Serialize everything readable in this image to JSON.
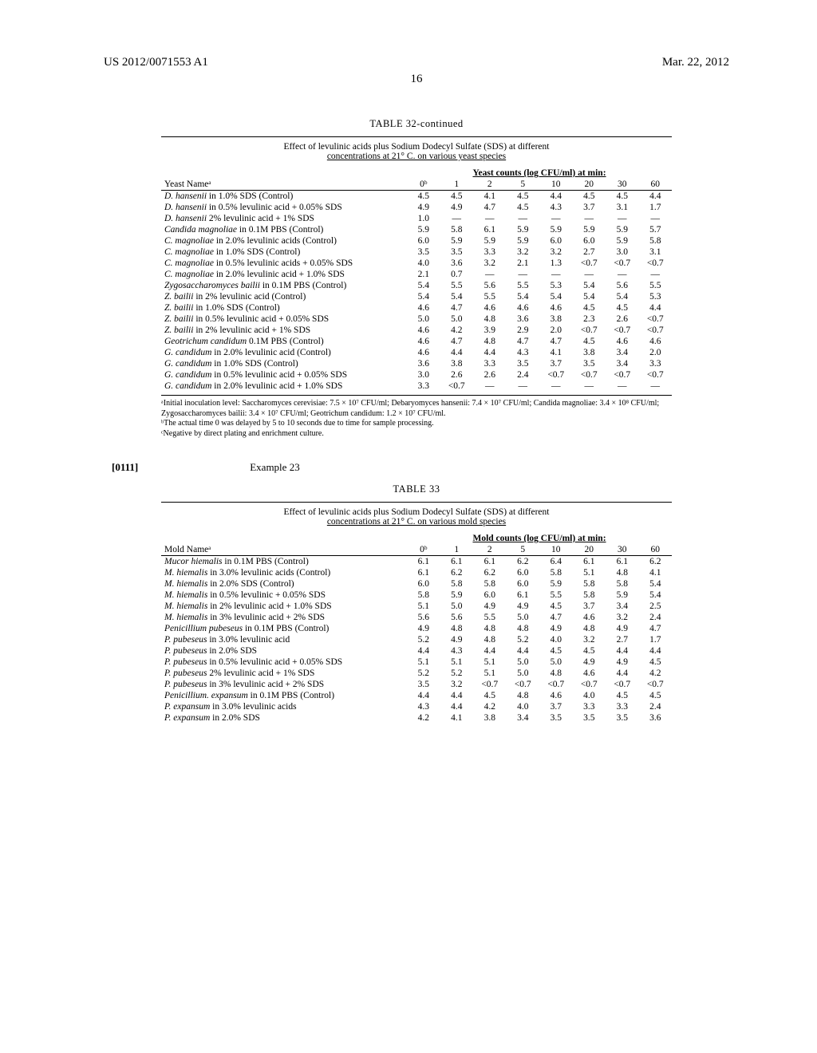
{
  "header": {
    "left": "US 2012/0071553 A1",
    "right": "Mar. 22, 2012",
    "page_number": "16"
  },
  "table32": {
    "title": "TABLE 32-continued",
    "caption_line1": "Effect of levulinic acids plus Sodium Dodecyl Sulfate (SDS) at different",
    "caption_line2": "concentrations at 21° C. on various yeast species",
    "col_group_label": "Yeast counts (log CFU/ml) at min:",
    "row_label": "Yeast Nameᵃ",
    "time_cols": [
      "0ᵇ",
      "1",
      "2",
      "5",
      "10",
      "20",
      "30",
      "60"
    ],
    "rows": [
      {
        "name": "D. hansenii in 1.0% SDS (Control)",
        "italic": "D. hansenii",
        "v": [
          "4.5",
          "4.5",
          "4.1",
          "4.5",
          "4.4",
          "4.5",
          "4.5",
          "4.4"
        ]
      },
      {
        "name": "D. hansenii in 0.5% levulinic acid + 0.05% SDS",
        "italic": "D. hansenii",
        "v": [
          "4.9",
          "4.9",
          "4.7",
          "4.5",
          "4.3",
          "3.7",
          "3.1",
          "1.7"
        ]
      },
      {
        "name": "D. hansenii 2% levulinic acid + 1% SDS",
        "italic": "D. hansenii",
        "v": [
          "1.0",
          "—",
          "—",
          "—",
          "—",
          "—",
          "—",
          "—"
        ]
      },
      {
        "name": "Candida magnoliae in 0.1M PBS (Control)",
        "italic": "Candida magnoliae",
        "v": [
          "5.9",
          "5.8",
          "6.1",
          "5.9",
          "5.9",
          "5.9",
          "5.9",
          "5.7"
        ]
      },
      {
        "name": "C. magnoliae in 2.0% levulinic acids (Control)",
        "italic": "C. magnoliae",
        "v": [
          "6.0",
          "5.9",
          "5.9",
          "5.9",
          "6.0",
          "6.0",
          "5.9",
          "5.8"
        ]
      },
      {
        "name": "C. magnoliae in 1.0% SDS (Control)",
        "italic": "C. magnoliae",
        "v": [
          "3.5",
          "3.5",
          "3.3",
          "3.2",
          "3.2",
          "2.7",
          "3.0",
          "3.1"
        ]
      },
      {
        "name": "C. magnoliae in 0.5% levulinic acids + 0.05% SDS",
        "italic": "C. magnoliae",
        "v": [
          "4.0",
          "3.6",
          "3.2",
          "2.1",
          "1.3",
          "<0.7",
          "<0.7",
          "<0.7"
        ]
      },
      {
        "name": "C. magnoliae in 2.0% levulinic acid + 1.0% SDS",
        "italic": "C. magnoliae",
        "v": [
          "2.1",
          "0.7",
          "—",
          "—",
          "—",
          "—",
          "—",
          "—"
        ]
      },
      {
        "name": "Zygosaccharomyces bailii in 0.1M PBS (Control)",
        "italic": "Zygosaccharomyces bailii",
        "v": [
          "5.4",
          "5.5",
          "5.6",
          "5.5",
          "5.3",
          "5.4",
          "5.6",
          "5.5"
        ]
      },
      {
        "name": "Z. bailii in 2% levulinic acid (Control)",
        "italic": "Z. bailii",
        "v": [
          "5.4",
          "5.4",
          "5.5",
          "5.4",
          "5.4",
          "5.4",
          "5.4",
          "5.3"
        ]
      },
      {
        "name": "Z. bailii in 1.0% SDS (Control)",
        "italic": "Z. bailii",
        "v": [
          "4.6",
          "4.7",
          "4.6",
          "4.6",
          "4.6",
          "4.5",
          "4.5",
          "4.4"
        ]
      },
      {
        "name": "Z. bailii in 0.5% levulinic acid + 0.05% SDS",
        "italic": "Z. bailii",
        "v": [
          "5.0",
          "5.0",
          "4.8",
          "3.6",
          "3.8",
          "2.3",
          "2.6",
          "<0.7"
        ]
      },
      {
        "name": "Z. bailii in 2% levulinic acid + 1% SDS",
        "italic": "Z. bailii",
        "v": [
          "4.6",
          "4.2",
          "3.9",
          "2.9",
          "2.0",
          "<0.7",
          "<0.7",
          "<0.7"
        ]
      },
      {
        "name": "Geotrichum candidum 0.1M PBS (Control)",
        "italic": "Geotrichum candidum",
        "v": [
          "4.6",
          "4.7",
          "4.8",
          "4.7",
          "4.7",
          "4.5",
          "4.6",
          "4.6"
        ]
      },
      {
        "name": "G. candidum in 2.0% levulinic acid (Control)",
        "italic": "G. candidum",
        "v": [
          "4.6",
          "4.4",
          "4.4",
          "4.3",
          "4.1",
          "3.8",
          "3.4",
          "2.0"
        ]
      },
      {
        "name": "G. candidum in 1.0% SDS (Control)",
        "italic": "G. candidum",
        "v": [
          "3.6",
          "3.8",
          "3.3",
          "3.5",
          "3.7",
          "3.5",
          "3.4",
          "3.3"
        ]
      },
      {
        "name": "G. candidum in 0.5% levulinic acid + 0.05% SDS",
        "italic": "G. candidum",
        "v": [
          "3.0",
          "2.6",
          "2.6",
          "2.4",
          "<0.7",
          "<0.7",
          "<0.7",
          "<0.7"
        ]
      },
      {
        "name": "G. candidum in 2.0% levulinic acid + 1.0% SDS",
        "italic": "G. candidum",
        "v": [
          "3.3",
          "<0.7",
          "—",
          "—",
          "—",
          "—",
          "—",
          "—"
        ]
      }
    ],
    "footnotes": [
      "ᵃInitial inoculation level: Saccharomyces cerevisiae: 7.5 × 10⁷ CFU/ml; Debaryomyces hansenii: 7.4 × 10⁷ CFU/ml; Candida magnoliae: 3.4 × 10⁸ CFU/ml; Zygosaccharomyces bailii: 3.4 × 10⁷ CFU/ml; Geotrichum candidum: 1.2 × 10⁷ CFU/ml.",
      "ᵇThe actual time 0 was delayed by 5 to 10 seconds due to time for sample processing.",
      "ᶜNegative by direct plating and enrichment culture."
    ]
  },
  "example": {
    "para_num": "[0111]",
    "heading": "Example 23"
  },
  "table33": {
    "title": "TABLE 33",
    "caption_line1": "Effect of levulinic acids plus Sodium Dodecyl Sulfate (SDS) at different",
    "caption_line2": "concentrations at 21° C. on various mold species",
    "col_group_label": "Mold counts (log CFU/ml) at min:",
    "row_label": "Mold Nameᵃ",
    "time_cols": [
      "0ᵇ",
      "1",
      "2",
      "5",
      "10",
      "20",
      "30",
      "60"
    ],
    "rows": [
      {
        "name": "Mucor hiemalis in 0.1M PBS (Control)",
        "italic": "Mucor hiemalis",
        "v": [
          "6.1",
          "6.1",
          "6.1",
          "6.2",
          "6.4",
          "6.1",
          "6.1",
          "6.2"
        ]
      },
      {
        "name": "M. hiemalis in 3.0% levulinic acids (Control)",
        "italic": "M. hiemalis",
        "v": [
          "6.1",
          "6.2",
          "6.2",
          "6.0",
          "5.8",
          "5.1",
          "4.8",
          "4.1"
        ]
      },
      {
        "name": "M. hiemalis in 2.0% SDS (Control)",
        "italic": "M. hiemalis",
        "v": [
          "6.0",
          "5.8",
          "5.8",
          "6.0",
          "5.9",
          "5.8",
          "5.8",
          "5.4"
        ]
      },
      {
        "name": "M. hiemalis in 0.5% levulinic + 0.05% SDS",
        "italic": "M. hiemalis",
        "v": [
          "5.8",
          "5.9",
          "6.0",
          "6.1",
          "5.5",
          "5.8",
          "5.9",
          "5.4"
        ]
      },
      {
        "name": "M. hiemalis in 2% levulinic acid + 1.0% SDS",
        "italic": "M. hiemalis",
        "v": [
          "5.1",
          "5.0",
          "4.9",
          "4.9",
          "4.5",
          "3.7",
          "3.4",
          "2.5"
        ]
      },
      {
        "name": "M. hiemalis in 3% levulinic acid + 2% SDS",
        "italic": "M. hiemalis",
        "v": [
          "5.6",
          "5.6",
          "5.5",
          "5.0",
          "4.7",
          "4.6",
          "3.2",
          "2.4"
        ]
      },
      {
        "name": "Penicillium pubeseus in 0.1M PBS (Control)",
        "italic": "Penicillium pubeseus",
        "v": [
          "4.9",
          "4.8",
          "4.8",
          "4.8",
          "4.9",
          "4.8",
          "4.9",
          "4.7"
        ]
      },
      {
        "name": "P. pubeseus in 3.0% levulinic acid",
        "italic": "P. pubeseus",
        "v": [
          "5.2",
          "4.9",
          "4.8",
          "5.2",
          "4.0",
          "3.2",
          "2.7",
          "1.7"
        ]
      },
      {
        "name": "P. pubeseus in 2.0% SDS",
        "italic": "P. pubeseus",
        "v": [
          "4.4",
          "4.3",
          "4.4",
          "4.4",
          "4.5",
          "4.5",
          "4.4",
          "4.4"
        ]
      },
      {
        "name": "P. pubeseus in 0.5% levulinic acid + 0.05% SDS",
        "italic": "P. pubeseus",
        "v": [
          "5.1",
          "5.1",
          "5.1",
          "5.0",
          "5.0",
          "4.9",
          "4.9",
          "4.5"
        ]
      },
      {
        "name": "P. pubeseus 2% levulinic acid + 1% SDS",
        "italic": "P. pubeseus",
        "v": [
          "5.2",
          "5.2",
          "5.1",
          "5.0",
          "4.8",
          "4.6",
          "4.4",
          "4.2"
        ]
      },
      {
        "name": "P. pubeseus in 3% levulinic acid + 2% SDS",
        "italic": "P. pubeseus",
        "v": [
          "3.5",
          "3.2",
          "<0.7",
          "<0.7",
          "<0.7",
          "<0.7",
          "<0.7",
          "<0.7"
        ]
      },
      {
        "name": "Penicillium. expansum in 0.1M PBS (Control)",
        "italic": "Penicillium. expansum",
        "v": [
          "4.4",
          "4.4",
          "4.5",
          "4.8",
          "4.6",
          "4.0",
          "4.5",
          "4.5"
        ]
      },
      {
        "name": "P. expansum in 3.0% levulinic acids",
        "italic": "P. expansum",
        "v": [
          "4.3",
          "4.4",
          "4.2",
          "4.0",
          "3.7",
          "3.3",
          "3.3",
          "2.4"
        ]
      },
      {
        "name": "P. expansum in 2.0% SDS",
        "italic": "P. expansum",
        "v": [
          "4.2",
          "4.1",
          "3.8",
          "3.4",
          "3.5",
          "3.5",
          "3.5",
          "3.6"
        ]
      }
    ]
  }
}
